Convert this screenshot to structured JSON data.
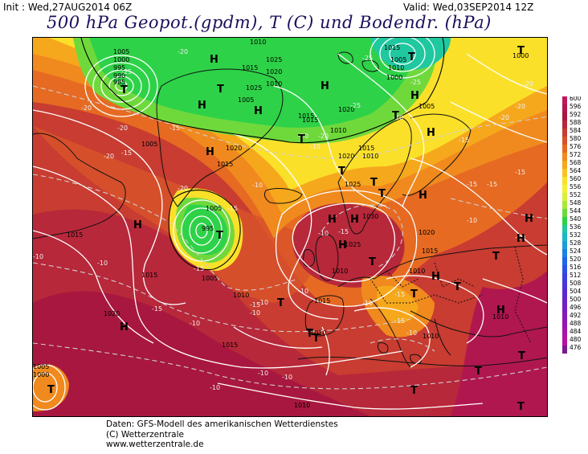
{
  "header": {
    "init_label": "Init : Wed,27AUG2014 06Z",
    "valid_label": "Valid: Wed,03SEP2014 12Z",
    "title": "500 hPa Geopot.(gpdm), T (C) und Bodendr. (hPa)"
  },
  "colorbar": {
    "labels": [
      "600",
      "596",
      "592",
      "588",
      "584",
      "580",
      "576",
      "572",
      "568",
      "564",
      "560",
      "556",
      "552",
      "548",
      "544",
      "540",
      "536",
      "532",
      "528",
      "524",
      "520",
      "516",
      "512",
      "508",
      "504",
      "500",
      "496",
      "492",
      "488",
      "484",
      "480",
      "476"
    ],
    "colors": [
      "#c2185b",
      "#b0174f",
      "#a8173f",
      "#b7283a",
      "#c83c31",
      "#d8522a",
      "#e66a22",
      "#f08a1e",
      "#f6a81c",
      "#f9c41e",
      "#fbe02a",
      "#f4f03a",
      "#d9f03a",
      "#a8e83a",
      "#6fd93c",
      "#2ed248",
      "#20c8a0",
      "#1ab8c8",
      "#1a9ed8",
      "#1a82e0",
      "#1e68e8",
      "#2a52e8",
      "#3a40e0",
      "#4a34d8",
      "#5a2ad0",
      "#6a22c8",
      "#7a1cc0",
      "#8a18b8",
      "#9a16b0",
      "#aa14a8",
      "#b812a0",
      "#7a1a90"
    ]
  },
  "pressure_labels": [
    "1010",
    "1005",
    "1000",
    "995",
    "990",
    "985",
    "1015",
    "1025",
    "1020",
    "1005",
    "1010",
    "1015",
    "1020",
    "1025",
    "1015",
    "1020",
    "1010",
    "1005",
    "1015",
    "1010",
    "1020",
    "1015",
    "1005",
    "1010",
    "1015",
    "1000",
    "1005",
    "995",
    "1015",
    "1025",
    "1030",
    "1025",
    "1020",
    "1015",
    "1010",
    "1015",
    "1005",
    "1010",
    "1020",
    "1010",
    "1015",
    "1010",
    "1005",
    "1000",
    "1015",
    "1010",
    "1010",
    "1005",
    "1000",
    "1010"
  ],
  "temp_labels": [
    "-20",
    "-25",
    "-20",
    "-15",
    "-20",
    "-25",
    "-15",
    "-20",
    "-20",
    "-15",
    "-20",
    "-25",
    "-20",
    "-15",
    "-15",
    "-10",
    "-20",
    "-15",
    "-10",
    "-15",
    "-15",
    "-10",
    "-10",
    "-15",
    "-10",
    "-10",
    "-15",
    "-10",
    "-10",
    "-10",
    "-15",
    "-10",
    "-15",
    "-10",
    "-10",
    "-10",
    "-10",
    "-20",
    "-15",
    "-10",
    "-25",
    "-20",
    "-15",
    "-20"
  ],
  "highs": [
    "H",
    "H",
    "H",
    "H",
    "H",
    "H",
    "H",
    "H",
    "H",
    "H",
    "H",
    "H",
    "H",
    "H",
    "H",
    "H",
    "H"
  ],
  "lows": [
    "T",
    "T",
    "T",
    "T",
    "T",
    "T",
    "T",
    "T",
    "T",
    "T",
    "T",
    "T",
    "T",
    "T",
    "T",
    "T",
    "T",
    "T",
    "T",
    "T",
    "T",
    "T"
  ],
  "credits": {
    "line1": "Daten: GFS-Modell des amerikanischen Wetterdienstes",
    "line2": "(C) Wetterzentrale",
    "line3": "www.wetterzentrale.de"
  }
}
